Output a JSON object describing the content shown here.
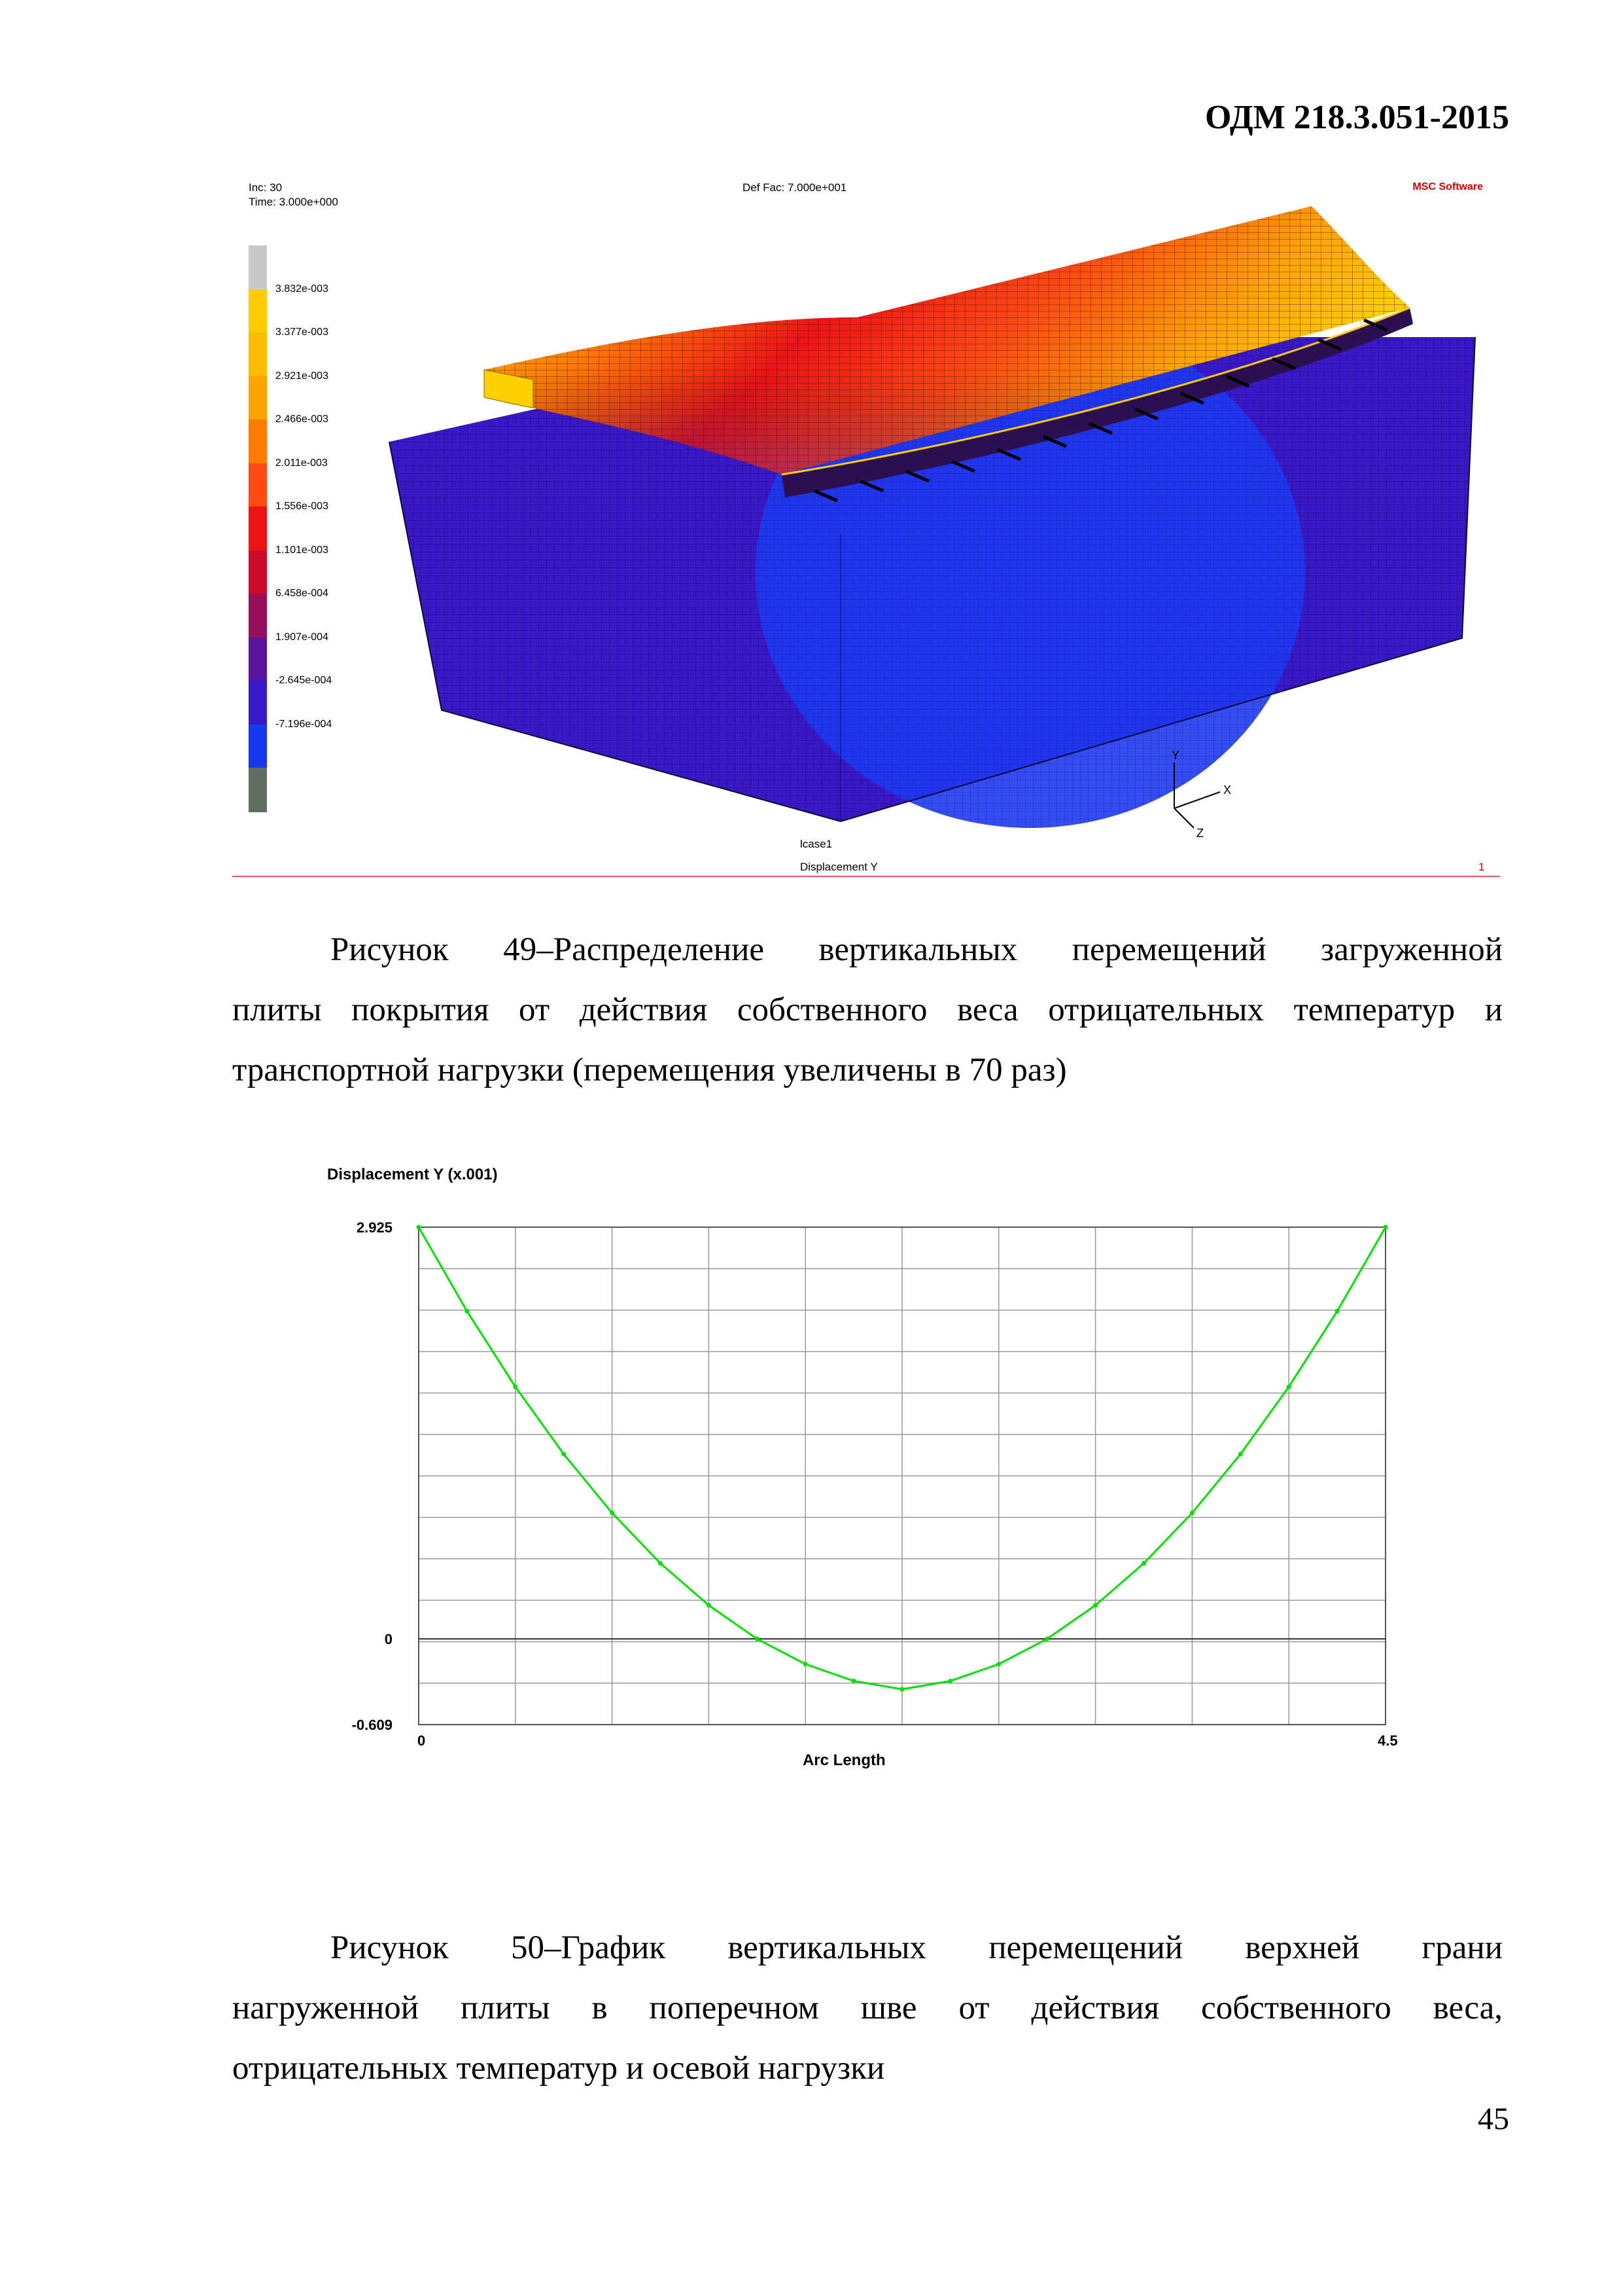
{
  "header": {
    "doc_code": "ОДМ 218.3.051-2015"
  },
  "figure49": {
    "inc_label": "Inc:  30",
    "time_label": "Time:  3.000e+000",
    "def_fac_label": "Def Fac:  7.000e+001",
    "logo": "MSC Software",
    "legend": [
      {
        "label": "3.832e-003",
        "color": "#ffcc00"
      },
      {
        "label": "3.377e-003",
        "color": "#ffbb00"
      },
      {
        "label": "2.921e-003",
        "color": "#ffa200"
      },
      {
        "label": "2.466e-003",
        "color": "#ff7a00"
      },
      {
        "label": "2.011e-003",
        "color": "#ff4a10"
      },
      {
        "label": "1.556e-003",
        "color": "#ee1414"
      },
      {
        "label": "1.101e-003",
        "color": "#cc0a2a"
      },
      {
        "label": "6.458e-004",
        "color": "#96105a"
      },
      {
        "label": "1.907e-004",
        "color": "#5a14a0"
      },
      {
        "label": "-2.645e-004",
        "color": "#3a18c8"
      },
      {
        "label": "-7.196e-004",
        "color": "#1838f0"
      }
    ],
    "legend_top_color": "#c8c8c8",
    "legend_bottom_color": "#607060",
    "lcase": "lcase1",
    "result": "Displacement Y",
    "frame_number": "1",
    "axis_labels": {
      "x": "X",
      "y": "Y",
      "z": "Z"
    },
    "colors": {
      "base": "#3a18c8",
      "bowl": "#1e3af2",
      "mesh": "#0a0a3a"
    },
    "caption": [
      "Рисунок 49–Распределение вертикальных перемещений загруженной",
      "плиты покрытия от действия собственного веса отрицательных температур и",
      "транспортной нагрузки (перемещения увеличены в 70 раз)"
    ]
  },
  "figure50": {
    "caption": [
      "Рисунок 50–График вертикальных перемещений верхней грани",
      "нагруженной плиты в поперечном шве от действия собственного веса,",
      "отрицательных температур и осевой нагрузки"
    ]
  },
  "chart_data": {
    "type": "line",
    "title": "Displacement Y (x.001)",
    "xlabel": "Arc Length",
    "ylabel": "",
    "xlim": [
      0,
      4.5
    ],
    "ylim": [
      -0.609,
      2.925
    ],
    "x_tick_labels": [
      "0",
      "4.5"
    ],
    "y_tick_labels": [
      "2.925",
      "0",
      "-0.609"
    ],
    "grid": true,
    "line_color": "#00dd00",
    "series": [
      {
        "x": [
          0,
          0.225,
          0.45,
          0.675,
          0.9,
          1.125,
          1.35,
          1.575,
          1.8,
          2.025,
          2.25,
          2.475,
          2.7,
          2.925,
          3.15,
          3.375,
          3.6,
          3.825,
          4.05,
          4.275,
          4.5
        ],
        "values": [
          2.925,
          2.328,
          1.791,
          1.313,
          0.895,
          0.537,
          0.239,
          0.0,
          -0.179,
          -0.299,
          -0.358,
          -0.299,
          -0.179,
          0.0,
          0.239,
          0.537,
          0.895,
          1.313,
          1.791,
          2.328,
          2.925
        ]
      }
    ]
  },
  "footer": {
    "page_number": "45"
  }
}
